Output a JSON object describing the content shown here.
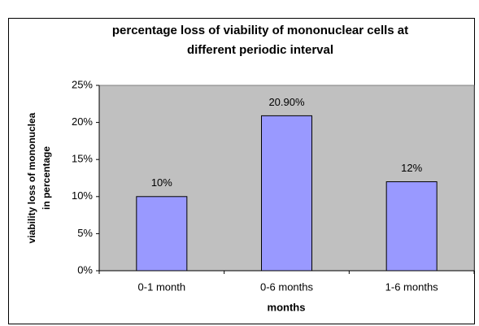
{
  "chart_data": {
    "type": "bar",
    "title": [
      "percentage loss of viability of mononuclear cells at",
      "different periodic interval"
    ],
    "y_label": [
      "viability loss of mononuclea",
      "in percentage"
    ],
    "x_label": "months",
    "categories": [
      "0-1 month",
      "0-6 months",
      "1-6 months"
    ],
    "values": [
      10,
      20.9,
      12
    ],
    "value_labels": [
      "10%",
      "20.90%",
      "12%"
    ],
    "color": "#9999ff",
    "plot_background": "#c0c0c0",
    "ylim": [
      0,
      25
    ],
    "yticks": [
      {
        "value": 0,
        "label": "0%"
      },
      {
        "value": 5,
        "label": "5%"
      },
      {
        "value": 10,
        "label": "10%"
      },
      {
        "value": 15,
        "label": "15%"
      },
      {
        "value": 20,
        "label": "20%"
      },
      {
        "value": 25,
        "label": "25%"
      }
    ],
    "grid": false
  }
}
